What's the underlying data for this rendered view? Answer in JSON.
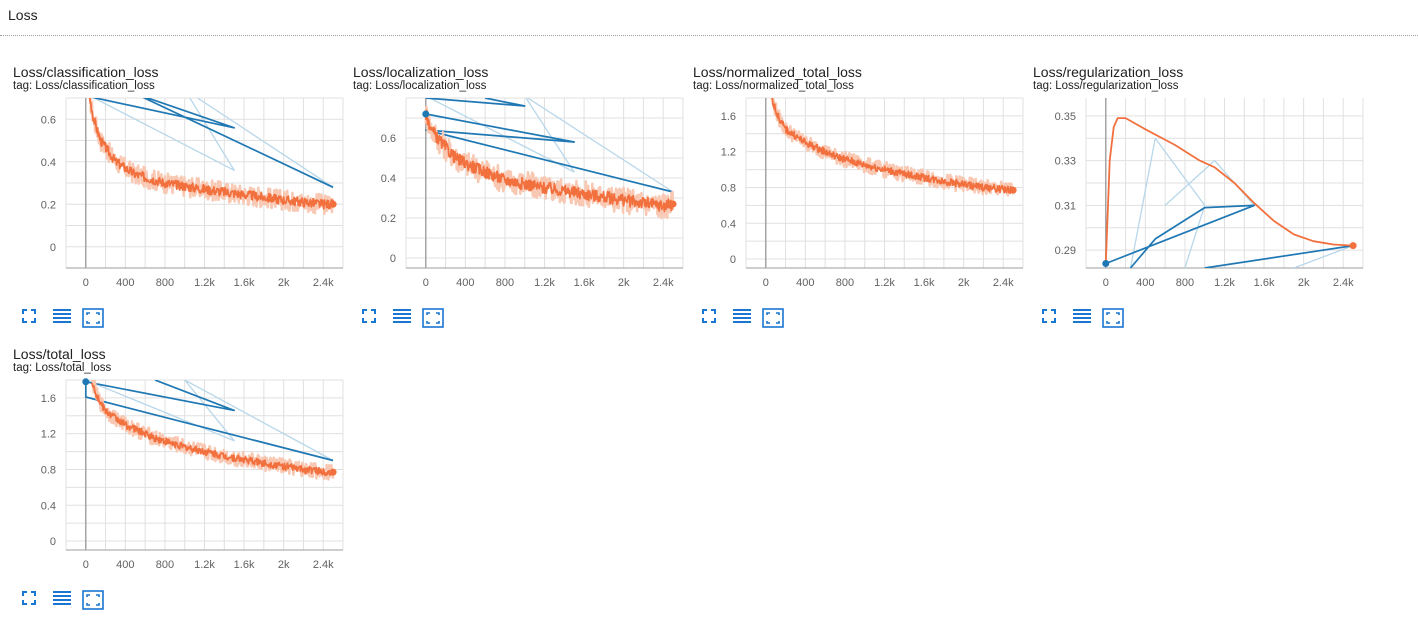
{
  "section": {
    "title": "Loss"
  },
  "colors": {
    "smoothed": "#f2703d",
    "raw": "#f9c8b3",
    "blue": "#1f78b4",
    "blueLight": "#b8d7ea",
    "grid": "#e0e0e0",
    "axis": "#9e9e9e",
    "icon": "#1976d2"
  },
  "toolbar_icons": [
    "fullscreen-icon",
    "toggle-log-scale-icon",
    "fit-domain-icon"
  ],
  "chart_data": [
    {
      "type": "line",
      "title": "Loss/classification_loss",
      "tag_label": "tag:",
      "tag": "Loss/classification_loss",
      "xlim": [
        -200,
        2600
      ],
      "ylim": [
        -0.1,
        0.7
      ],
      "xticks": [
        0,
        400,
        800,
        1200,
        1600,
        2000,
        2400
      ],
      "xtick_labels": [
        "0",
        "400",
        "800",
        "1.2k",
        "1.6k",
        "2k",
        "2.4k"
      ],
      "yticks": [
        0,
        0.2,
        0.4,
        0.6
      ],
      "ytick_labels": [
        "0",
        "0.2",
        "0.4",
        "0.6"
      ],
      "series": [
        {
          "key": "smoothed",
          "noise": 0.022,
          "points": [
            [
              40,
              0.7
            ],
            [
              80,
              0.6
            ],
            [
              150,
              0.5
            ],
            [
              300,
              0.4
            ],
            [
              500,
              0.34
            ],
            [
              800,
              0.3
            ],
            [
              1200,
              0.27
            ],
            [
              1600,
              0.245
            ],
            [
              2000,
              0.22
            ],
            [
              2400,
              0.2
            ],
            [
              2500,
              0.2
            ]
          ],
          "end_marker": true
        },
        {
          "key": "blue",
          "points": [
            [
              0,
              0.71
            ],
            [
              1500,
              0.56
            ],
            [
              500,
              0.72
            ],
            [
              2500,
              0.28
            ]
          ],
          "start_marker": false
        },
        {
          "key": "blueLight",
          "points": [
            [
              0,
              0.72
            ],
            [
              1500,
              0.36
            ],
            [
              1000,
              0.74
            ],
            [
              2500,
              0.28
            ]
          ]
        }
      ]
    },
    {
      "type": "line",
      "title": "Loss/localization_loss",
      "tag_label": "tag:",
      "tag": "Loss/localization_loss",
      "xlim": [
        -200,
        2600
      ],
      "ylim": [
        -0.05,
        0.8
      ],
      "xticks": [
        0,
        400,
        800,
        1200,
        1600,
        2000,
        2400
      ],
      "xtick_labels": [
        "0",
        "400",
        "800",
        "1.2k",
        "1.6k",
        "2k",
        "2.4k"
      ],
      "yticks": [
        0,
        0.2,
        0.4,
        0.6
      ],
      "ytick_labels": [
        "0",
        "0.2",
        "0.4",
        "0.6"
      ],
      "series": [
        {
          "key": "smoothed",
          "noise": 0.03,
          "points": [
            [
              0,
              0.72
            ],
            [
              60,
              0.64
            ],
            [
              150,
              0.58
            ],
            [
              300,
              0.5
            ],
            [
              500,
              0.45
            ],
            [
              800,
              0.39
            ],
            [
              1200,
              0.35
            ],
            [
              1600,
              0.32
            ],
            [
              2000,
              0.29
            ],
            [
              2400,
              0.26
            ],
            [
              2500,
              0.27
            ]
          ],
          "end_marker": true
        },
        {
          "key": "blue",
          "points": [
            [
              0,
              0.72
            ],
            [
              1500,
              0.58
            ],
            [
              0,
              0.64
            ],
            [
              2500,
              0.33
            ]
          ],
          "start_marker": true
        },
        {
          "key": "blue",
          "points": [
            [
              0,
              0.8
            ],
            [
              1000,
              0.76
            ],
            [
              600,
              0.8
            ]
          ]
        },
        {
          "key": "blueLight",
          "points": [
            [
              0,
              0.81
            ],
            [
              1500,
              0.43
            ],
            [
              1000,
              0.81
            ],
            [
              2500,
              0.33
            ]
          ]
        }
      ]
    },
    {
      "type": "line",
      "title": "Loss/normalized_total_loss",
      "tag_label": "tag:",
      "tag": "Loss/normalized_total_loss",
      "xlim": [
        -200,
        2600
      ],
      "ylim": [
        -0.1,
        1.8
      ],
      "xticks": [
        0,
        400,
        800,
        1200,
        1600,
        2000,
        2400
      ],
      "xtick_labels": [
        "0",
        "400",
        "800",
        "1.2k",
        "1.6k",
        "2k",
        "2.4k"
      ],
      "yticks": [
        0,
        0.4,
        0.8,
        1.2,
        1.6
      ],
      "ytick_labels": [
        "0",
        "0.4",
        "0.8",
        "1.2",
        "1.6"
      ],
      "series": [
        {
          "key": "smoothed",
          "noise": 0.04,
          "points": [
            [
              60,
              1.8
            ],
            [
              120,
              1.6
            ],
            [
              200,
              1.45
            ],
            [
              400,
              1.3
            ],
            [
              700,
              1.15
            ],
            [
              1000,
              1.05
            ],
            [
              1400,
              0.95
            ],
            [
              1800,
              0.87
            ],
            [
              2200,
              0.8
            ],
            [
              2500,
              0.77
            ]
          ],
          "end_marker": true
        }
      ]
    },
    {
      "type": "line",
      "title": "Loss/regularization_loss",
      "tag_label": "tag:",
      "tag": "Loss/regularization_loss",
      "xlim": [
        -200,
        2600
      ],
      "ylim": [
        0.282,
        0.358
      ],
      "xticks": [
        0,
        400,
        800,
        1200,
        1600,
        2000,
        2400
      ],
      "xtick_labels": [
        "0",
        "400",
        "800",
        "1.2k",
        "1.6k",
        "2k",
        "2.4k"
      ],
      "yticks": [
        0.29,
        0.31,
        0.33,
        0.35
      ],
      "ytick_labels": [
        "0.29",
        "0.31",
        "0.33",
        "0.35"
      ],
      "series": [
        {
          "key": "blueLight",
          "points": [
            [
              250,
              0.282
            ],
            [
              500,
              0.34
            ],
            [
              1000,
              0.31
            ],
            [
              800,
              0.282
            ]
          ]
        },
        {
          "key": "blueLight",
          "points": [
            [
              600,
              0.31
            ],
            [
              1100,
              0.33
            ],
            [
              1500,
              0.31
            ]
          ]
        },
        {
          "key": "blueLight",
          "points": [
            [
              1900,
              0.282
            ],
            [
              2500,
              0.292
            ]
          ]
        },
        {
          "key": "blue",
          "points": [
            [
              0,
              0.284
            ],
            [
              1500,
              0.31
            ],
            [
              1000,
              0.309
            ],
            [
              500,
              0.295
            ],
            [
              250,
              0.282
            ]
          ],
          "start_marker": true
        },
        {
          "key": "blue",
          "points": [
            [
              1000,
              0.282
            ],
            [
              2500,
              0.292
            ]
          ]
        },
        {
          "key": "smoothed",
          "noise": 0,
          "points": [
            [
              0,
              0.284
            ],
            [
              40,
              0.33
            ],
            [
              80,
              0.345
            ],
            [
              120,
              0.349
            ],
            [
              200,
              0.349
            ],
            [
              400,
              0.344
            ],
            [
              700,
              0.337
            ],
            [
              950,
              0.33
            ],
            [
              1100,
              0.327
            ],
            [
              1300,
              0.32
            ],
            [
              1500,
              0.311
            ],
            [
              1700,
              0.303
            ],
            [
              1900,
              0.297
            ],
            [
              2100,
              0.294
            ],
            [
              2300,
              0.2925
            ],
            [
              2500,
              0.292
            ]
          ],
          "end_marker": true
        }
      ]
    },
    {
      "type": "line",
      "title": "Loss/total_loss",
      "tag_label": "tag:",
      "tag": "Loss/total_loss",
      "xlim": [
        -200,
        2600
      ],
      "ylim": [
        -0.1,
        1.8
      ],
      "xticks": [
        0,
        400,
        800,
        1200,
        1600,
        2000,
        2400
      ],
      "xtick_labels": [
        "0",
        "400",
        "800",
        "1.2k",
        "1.6k",
        "2k",
        "2.4k"
      ],
      "yticks": [
        0,
        0.4,
        0.8,
        1.2,
        1.6
      ],
      "ytick_labels": [
        "0",
        "0.4",
        "0.8",
        "1.2",
        "1.6"
      ],
      "series": [
        {
          "key": "smoothed",
          "noise": 0.04,
          "points": [
            [
              60,
              1.8
            ],
            [
              120,
              1.6
            ],
            [
              200,
              1.45
            ],
            [
              400,
              1.3
            ],
            [
              700,
              1.15
            ],
            [
              1000,
              1.05
            ],
            [
              1400,
              0.95
            ],
            [
              1800,
              0.87
            ],
            [
              2200,
              0.8
            ],
            [
              2500,
              0.77
            ]
          ],
          "end_marker": true
        },
        {
          "key": "blue",
          "points": [
            [
              0,
              1.78
            ],
            [
              1500,
              1.46
            ],
            [
              700,
              1.8
            ]
          ],
          "start_marker": true
        },
        {
          "key": "blue",
          "points": [
            [
              0,
              1.78
            ],
            [
              0,
              1.61
            ],
            [
              2500,
              0.9
            ]
          ]
        },
        {
          "key": "blueLight",
          "points": [
            [
              0,
              1.8
            ],
            [
              1500,
              1.12
            ],
            [
              1000,
              1.8
            ],
            [
              2500,
              0.9
            ]
          ]
        }
      ]
    }
  ]
}
